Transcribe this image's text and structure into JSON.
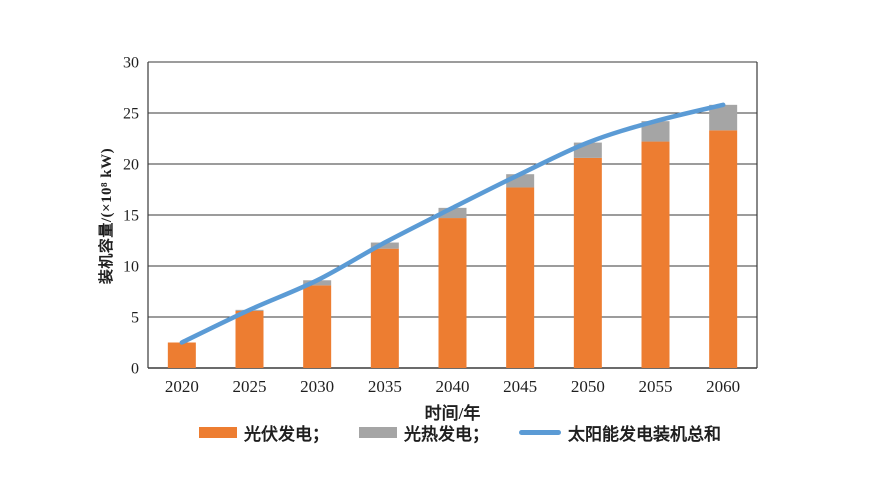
{
  "chart_data": {
    "type": "bar",
    "subtype": "stacked-bar-with-line-overlay",
    "categories": [
      "2020",
      "2025",
      "2030",
      "2035",
      "2040",
      "2045",
      "2050",
      "2055",
      "2060"
    ],
    "series": [
      {
        "key": "pv",
        "name": "光伏发电",
        "type": "bar",
        "stack": "capacity",
        "color": "#ED7D31",
        "values": [
          2.5,
          5.6,
          8.1,
          11.7,
          14.7,
          17.7,
          20.6,
          22.2,
          23.3
        ]
      },
      {
        "key": "csp",
        "name": "光热发电",
        "type": "bar",
        "stack": "capacity",
        "color": "#A5A5A5",
        "values": [
          0,
          0.1,
          0.5,
          0.6,
          1.0,
          1.3,
          1.5,
          2.0,
          2.5
        ]
      },
      {
        "key": "total",
        "name": "太阳能发电装机总和",
        "type": "line",
        "color": "#5B9BD5",
        "values": [
          2.5,
          5.7,
          8.6,
          12.3,
          15.7,
          19.0,
          22.1,
          24.2,
          25.8
        ]
      }
    ],
    "xlabel": "时间/年",
    "ylabel": "装机容量/(×10⁸ kW)",
    "ylim": [
      0,
      30
    ],
    "ytick_step": 5,
    "yticks": [
      "0",
      "5",
      "10",
      "15",
      "20",
      "25",
      "30"
    ],
    "grid": "horizontal",
    "plot_border": "box",
    "axis_color": "#3a3a3a",
    "text_color": "#1f1f1f",
    "legend_position": "bottom",
    "legend": [
      {
        "label": "光伏发电；",
        "color": "#ED7D31",
        "swatch": "bar"
      },
      {
        "label": "光热发电；",
        "color": "#A5A5A5",
        "swatch": "bar"
      },
      {
        "label": "太阳能发电装机总和",
        "color": "#5B9BD5",
        "swatch": "line"
      }
    ]
  }
}
